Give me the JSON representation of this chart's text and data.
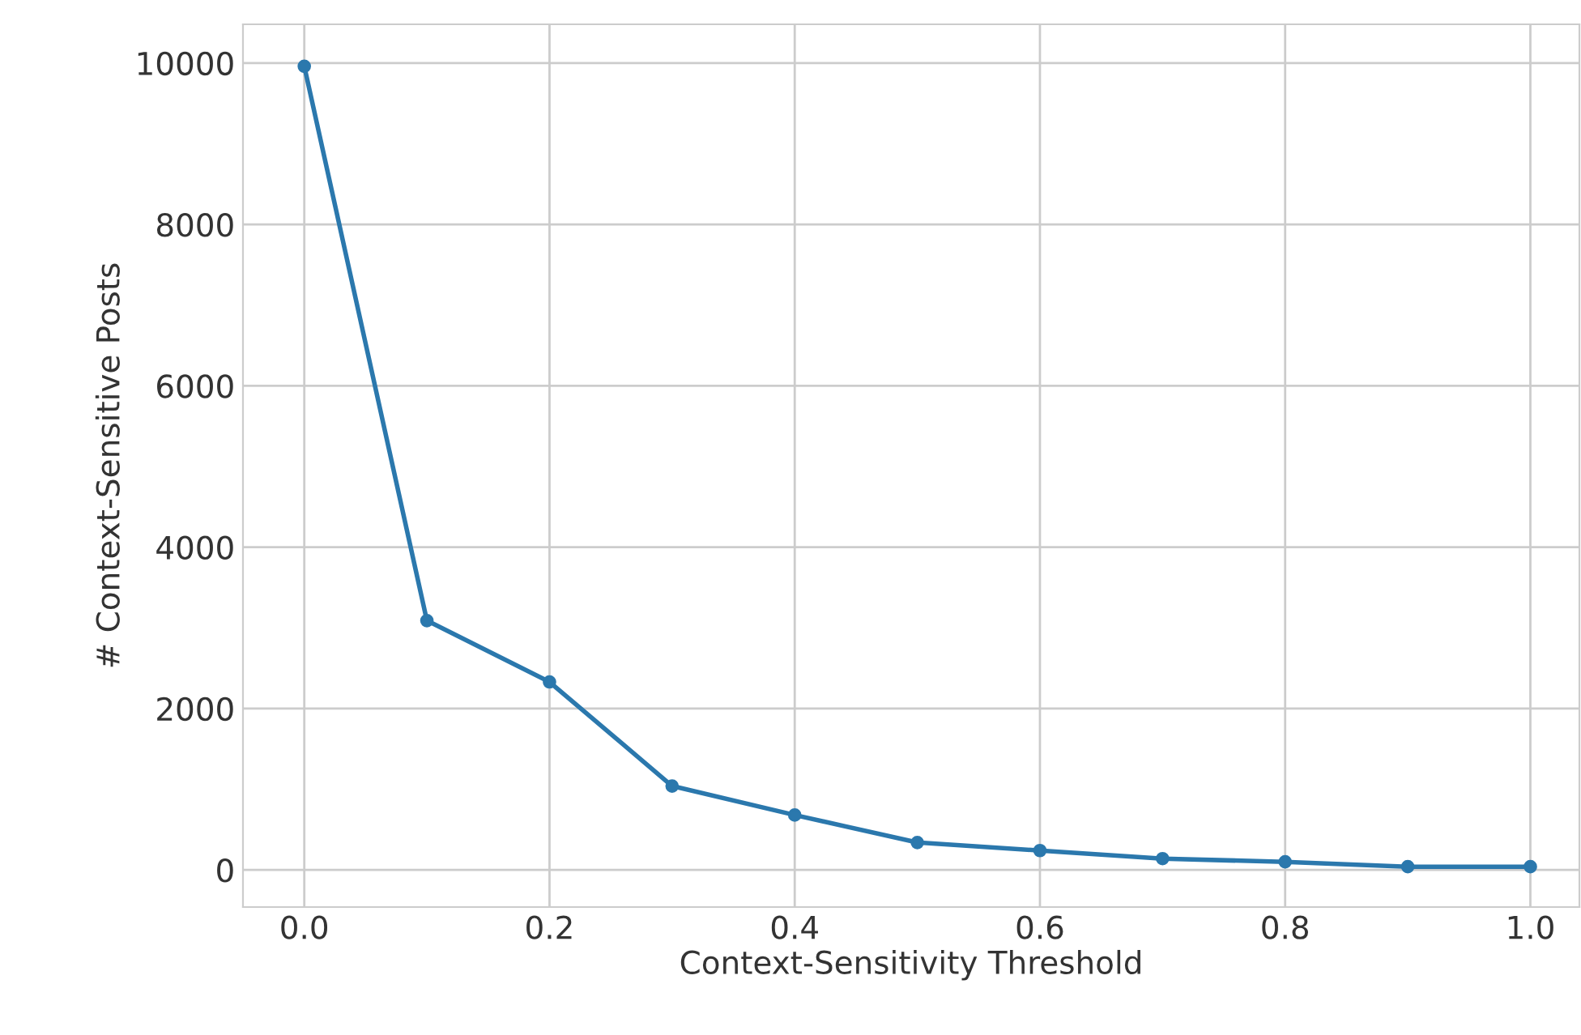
{
  "chart_data": {
    "type": "line",
    "xlabel": "Context-Sensitivity Threshold",
    "ylabel": "# Context-Sensitive Posts",
    "x": [
      0.0,
      0.1,
      0.2,
      0.3,
      0.4,
      0.5,
      0.6,
      0.7,
      0.8,
      0.9,
      1.0
    ],
    "series": [
      {
        "color": "#2b78ad",
        "values": [
          9960,
          3090,
          2330,
          1040,
          680,
          340,
          240,
          140,
          100,
          40,
          40
        ]
      }
    ],
    "xlim": [
      -0.05,
      1.04
    ],
    "ylim": [
      -460,
      10480
    ],
    "xticks": [
      {
        "value": 0.0,
        "label": "0.0"
      },
      0.2,
      0.4,
      0.6,
      0.8,
      {
        "value": 1.0,
        "label": "1.0"
      }
    ],
    "yticks": [
      0,
      2000,
      4000,
      6000,
      8000,
      10000
    ],
    "grid": true,
    "marker": "circle",
    "line_style": "solid"
  }
}
